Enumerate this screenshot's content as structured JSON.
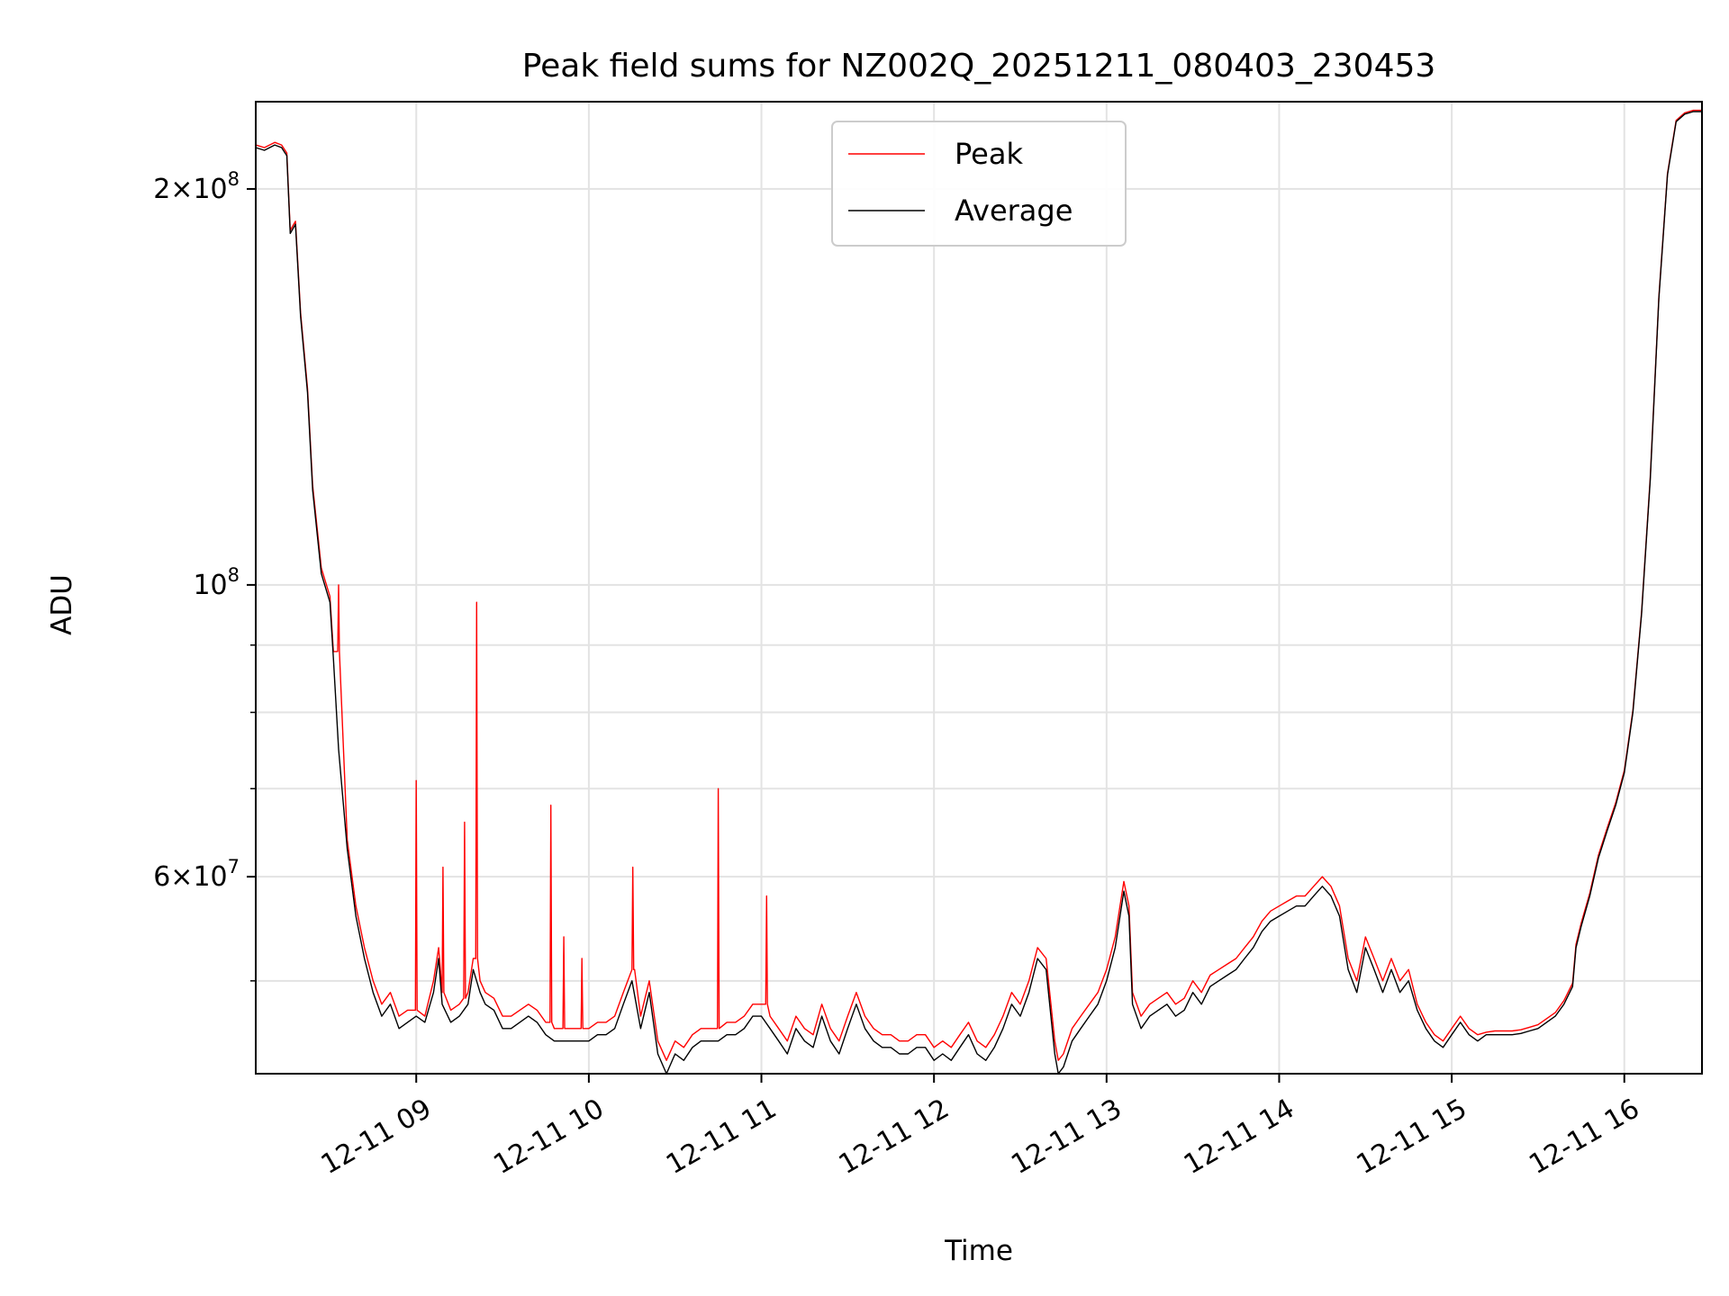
{
  "chart_data": {
    "type": "line",
    "title": "Peak field sums for NZ002Q_20251211_080403_230453",
    "xlabel": "Time",
    "ylabel": "ADU",
    "yscale": "log",
    "xlim": [
      8.07,
      16.45
    ],
    "ylim": [
      42500000,
      233000000
    ],
    "grid": true,
    "legend_position": "upper center",
    "x_ticks": [
      {
        "value": 9,
        "label": "12-11 09"
      },
      {
        "value": 10,
        "label": "12-11 10"
      },
      {
        "value": 11,
        "label": "12-11 11"
      },
      {
        "value": 12,
        "label": "12-11 12"
      },
      {
        "value": 13,
        "label": "12-11 13"
      },
      {
        "value": 14,
        "label": "12-11 14"
      },
      {
        "value": 15,
        "label": "12-11 15"
      },
      {
        "value": 16,
        "label": "12-11 16"
      }
    ],
    "y_ticks": [
      {
        "value": 60000000,
        "base": "6",
        "exp": "7"
      },
      {
        "value": 100000000,
        "base": "",
        "exp": "8"
      },
      {
        "value": 200000000,
        "base": "2",
        "exp": "8"
      }
    ],
    "y_minor_ticks": [
      50000000,
      70000000,
      80000000,
      90000000
    ],
    "series": [
      {
        "name": "Average",
        "color": "#000000",
        "x": [
          8.07,
          8.12,
          8.18,
          8.22,
          8.25,
          8.27,
          8.3,
          8.33,
          8.37,
          8.4,
          8.45,
          8.5,
          8.52,
          8.55,
          8.6,
          8.65,
          8.7,
          8.75,
          8.8,
          8.85,
          8.9,
          8.95,
          9.0,
          9.05,
          9.1,
          9.13,
          9.15,
          9.2,
          9.25,
          9.3,
          9.33,
          9.37,
          9.4,
          9.45,
          9.5,
          9.55,
          9.6,
          9.65,
          9.7,
          9.75,
          9.8,
          9.85,
          9.9,
          9.95,
          10.0,
          10.05,
          10.1,
          10.15,
          10.2,
          10.25,
          10.3,
          10.35,
          10.4,
          10.45,
          10.5,
          10.55,
          10.6,
          10.65,
          10.7,
          10.75,
          10.8,
          10.85,
          10.9,
          10.95,
          11.0,
          11.05,
          11.1,
          11.15,
          11.2,
          11.25,
          11.3,
          11.35,
          11.4,
          11.45,
          11.5,
          11.55,
          11.6,
          11.65,
          11.7,
          11.75,
          11.8,
          11.85,
          11.9,
          11.95,
          12.0,
          12.05,
          12.1,
          12.15,
          12.2,
          12.25,
          12.3,
          12.35,
          12.4,
          12.45,
          12.5,
          12.55,
          12.6,
          12.65,
          12.7,
          12.72,
          12.75,
          12.8,
          12.85,
          12.9,
          12.95,
          13.0,
          13.05,
          13.1,
          13.13,
          13.15,
          13.2,
          13.25,
          13.3,
          13.35,
          13.4,
          13.45,
          13.5,
          13.55,
          13.6,
          13.65,
          13.7,
          13.75,
          13.8,
          13.85,
          13.9,
          13.95,
          14.0,
          14.05,
          14.1,
          14.15,
          14.2,
          14.25,
          14.3,
          14.35,
          14.4,
          14.45,
          14.5,
          14.55,
          14.6,
          14.65,
          14.7,
          14.75,
          14.8,
          14.85,
          14.9,
          14.95,
          15.0,
          15.05,
          15.1,
          15.15,
          15.2,
          15.25,
          15.3,
          15.35,
          15.4,
          15.45,
          15.5,
          15.55,
          15.6,
          15.65,
          15.7,
          15.72,
          15.75,
          15.8,
          15.85,
          15.9,
          15.95,
          16.0,
          16.05,
          16.1,
          16.15,
          16.2,
          16.25,
          16.3,
          16.35,
          16.4,
          16.45
        ],
        "y": [
          215000000,
          214000000,
          216000000,
          215000000,
          212000000,
          185000000,
          188000000,
          160000000,
          140000000,
          118000000,
          102000000,
          97000000,
          88000000,
          75000000,
          63000000,
          56000000,
          52000000,
          49000000,
          47000000,
          48000000,
          46000000,
          46500000,
          47000000,
          46500000,
          49000000,
          52000000,
          48000000,
          46500000,
          47000000,
          48000000,
          51000000,
          49000000,
          48000000,
          47500000,
          46000000,
          46000000,
          46500000,
          47000000,
          46500000,
          45500000,
          45000000,
          45000000,
          45000000,
          45000000,
          45000000,
          45500000,
          45500000,
          46000000,
          48000000,
          50000000,
          46000000,
          49000000,
          44000000,
          42500000,
          44000000,
          43500000,
          44500000,
          45000000,
          45000000,
          45000000,
          45500000,
          45500000,
          46000000,
          47000000,
          47000000,
          46000000,
          45000000,
          44000000,
          46000000,
          45000000,
          44500000,
          47000000,
          45000000,
          44000000,
          46000000,
          48000000,
          46000000,
          45000000,
          44500000,
          44500000,
          44000000,
          44000000,
          44500000,
          44500000,
          43500000,
          44000000,
          43500000,
          44500000,
          45500000,
          44000000,
          43500000,
          44500000,
          46000000,
          48000000,
          47000000,
          49000000,
          52000000,
          51000000,
          44000000,
          42500000,
          43000000,
          45000000,
          46000000,
          47000000,
          48000000,
          50000000,
          53000000,
          58500000,
          56000000,
          48000000,
          46000000,
          47000000,
          47500000,
          48000000,
          47000000,
          47500000,
          49000000,
          48000000,
          49500000,
          50000000,
          50500000,
          51000000,
          52000000,
          53000000,
          54500000,
          55500000,
          56000000,
          56500000,
          57000000,
          57000000,
          58000000,
          59000000,
          58000000,
          56000000,
          51000000,
          49000000,
          53000000,
          51000000,
          49000000,
          51000000,
          49000000,
          50000000,
          47500000,
          46000000,
          45000000,
          44500000,
          45500000,
          46500000,
          45500000,
          45000000,
          45500000,
          45500000,
          45500000,
          45500000,
          45600000,
          45800000,
          46000000,
          46500000,
          47000000,
          48000000,
          49500000,
          53000000,
          55000000,
          58000000,
          62000000,
          65000000,
          68000000,
          72000000,
          80000000,
          95000000,
          120000000,
          165000000,
          205000000,
          225000000,
          228000000,
          229000000,
          229000000
        ]
      },
      {
        "name": "Peak",
        "color": "#ff0000",
        "x": [
          8.07,
          8.12,
          8.18,
          8.22,
          8.25,
          8.27,
          8.3,
          8.33,
          8.37,
          8.4,
          8.45,
          8.5,
          8.52,
          8.545,
          8.55,
          8.555,
          8.6,
          8.65,
          8.7,
          8.75,
          8.8,
          8.85,
          8.9,
          8.95,
          8.995,
          9.0,
          9.005,
          9.05,
          9.1,
          9.13,
          9.15,
          9.155,
          9.16,
          9.2,
          9.25,
          9.275,
          9.28,
          9.285,
          9.3,
          9.33,
          9.345,
          9.35,
          9.355,
          9.37,
          9.4,
          9.45,
          9.5,
          9.55,
          9.6,
          9.65,
          9.7,
          9.75,
          9.775,
          9.78,
          9.785,
          9.8,
          9.85,
          9.855,
          9.86,
          9.865,
          9.9,
          9.95,
          9.955,
          9.96,
          9.965,
          10.0,
          10.05,
          10.1,
          10.15,
          10.2,
          10.25,
          10.255,
          10.26,
          10.265,
          10.3,
          10.35,
          10.4,
          10.45,
          10.5,
          10.55,
          10.6,
          10.65,
          10.7,
          10.745,
          10.75,
          10.755,
          10.8,
          10.85,
          10.9,
          10.95,
          11.025,
          11.03,
          11.035,
          11.05,
          11.1,
          11.15,
          11.2,
          11.25,
          11.3,
          11.35,
          11.4,
          11.45,
          11.5,
          11.55,
          11.6,
          11.65,
          11.7,
          11.75,
          11.8,
          11.85,
          11.9,
          11.95,
          12.0,
          12.05,
          12.1,
          12.15,
          12.2,
          12.25,
          12.3,
          12.35,
          12.4,
          12.45,
          12.5,
          12.55,
          12.6,
          12.65,
          12.7,
          12.72,
          12.75,
          12.8,
          12.85,
          12.9,
          12.95,
          13.0,
          13.05,
          13.1,
          13.13,
          13.15,
          13.2,
          13.25,
          13.3,
          13.35,
          13.4,
          13.45,
          13.5,
          13.55,
          13.6,
          13.65,
          13.7,
          13.75,
          13.8,
          13.85,
          13.9,
          13.95,
          14.0,
          14.05,
          14.1,
          14.15,
          14.2,
          14.25,
          14.3,
          14.35,
          14.4,
          14.45,
          14.5,
          14.55,
          14.6,
          14.65,
          14.7,
          14.75,
          14.8,
          14.85,
          14.9,
          14.95,
          15.0,
          15.05,
          15.1,
          15.15,
          15.2,
          15.25,
          15.3,
          15.35,
          15.4,
          15.45,
          15.5,
          15.55,
          15.6,
          15.65,
          15.7,
          15.72,
          15.75,
          15.8,
          15.85,
          15.9,
          15.95,
          16.0,
          16.05,
          16.1,
          16.15,
          16.2,
          16.25,
          16.3,
          16.35,
          16.4,
          16.45
        ],
        "y": [
          216000000,
          215000000,
          217000000,
          216000000,
          213000000,
          186000000,
          189000000,
          161000000,
          141000000,
          119000000,
          103000000,
          98000000,
          89000000,
          89000000,
          100000000,
          89000000,
          64000000,
          57000000,
          53000000,
          50000000,
          48000000,
          49000000,
          47000000,
          47500000,
          47500000,
          71000000,
          47500000,
          47000000,
          50000000,
          53000000,
          49000000,
          61000000,
          49000000,
          47500000,
          48000000,
          48500000,
          66000000,
          48500000,
          49000000,
          52000000,
          52000000,
          97000000,
          52000000,
          50000000,
          49000000,
          48500000,
          47000000,
          47000000,
          47500000,
          48000000,
          47500000,
          46500000,
          46500000,
          68000000,
          46500000,
          46000000,
          46000000,
          54000000,
          46000000,
          46000000,
          46000000,
          46000000,
          46000000,
          52000000,
          46000000,
          46000000,
          46500000,
          46500000,
          47000000,
          49000000,
          51000000,
          61000000,
          51000000,
          51000000,
          47000000,
          50000000,
          45000000,
          43500000,
          45000000,
          44500000,
          45500000,
          46000000,
          46000000,
          46000000,
          70000000,
          46000000,
          46500000,
          46500000,
          47000000,
          48000000,
          48000000,
          58000000,
          48000000,
          47000000,
          46000000,
          45000000,
          47000000,
          46000000,
          45500000,
          48000000,
          46000000,
          45000000,
          47000000,
          49000000,
          47000000,
          46000000,
          45500000,
          45500000,
          45000000,
          45000000,
          45500000,
          45500000,
          44500000,
          45000000,
          44500000,
          45500000,
          46500000,
          45000000,
          44500000,
          45500000,
          47000000,
          49000000,
          48000000,
          50000000,
          53000000,
          52000000,
          45000000,
          43500000,
          44000000,
          46000000,
          47000000,
          48000000,
          49000000,
          51000000,
          54000000,
          59500000,
          57000000,
          49000000,
          47000000,
          48000000,
          48500000,
          49000000,
          48000000,
          48500000,
          50000000,
          49000000,
          50500000,
          51000000,
          51500000,
          52000000,
          53000000,
          54000000,
          55500000,
          56500000,
          57000000,
          57500000,
          58000000,
          58000000,
          59000000,
          60000000,
          59000000,
          57000000,
          52000000,
          50000000,
          54000000,
          52000000,
          50000000,
          52000000,
          50000000,
          51000000,
          48000000,
          46500000,
          45500000,
          45000000,
          46000000,
          47000000,
          46000000,
          45500000,
          45700000,
          45800000,
          45800000,
          45800000,
          45900000,
          46100000,
          46300000,
          46800000,
          47300000,
          48300000,
          49800000,
          53300000,
          55300000,
          58300000,
          62300000,
          65300000,
          68300000,
          72300000,
          80300000,
          95300000,
          120500000,
          165500000,
          205500000,
          225500000,
          228500000,
          229500000,
          229500000
        ]
      }
    ]
  }
}
